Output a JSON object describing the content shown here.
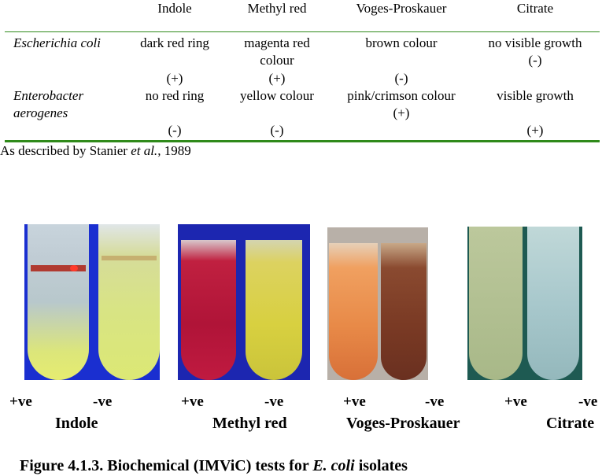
{
  "table": {
    "headers": [
      "Indole",
      "Methyl red",
      "Voges-Proskauer",
      "Citrate"
    ],
    "rows": [
      {
        "organism": "Escherichia coli",
        "indole": "dark red ring",
        "methyl_red": "magenta red colour",
        "voges": "brown colour",
        "citrate": "no visible growth",
        "citrate_result": "(-)",
        "results": [
          "(+)",
          "(+)",
          "(-)"
        ]
      },
      {
        "organism": "Enterobacter aerogenes",
        "indole": "no red ring",
        "methyl_red": "yellow colour",
        "voges": "pink/crimson colour",
        "voges_result": "(+)",
        "citrate": "visible growth",
        "results": [
          "(-)",
          "(-)",
          "(+)"
        ]
      }
    ],
    "source_prefix": "As described by Stanier ",
    "source_italic": "et al.",
    "source_suffix": ", 1989"
  },
  "figure": {
    "labels": [
      "+ve",
      "-ve"
    ],
    "tests": [
      "Indole",
      "Methyl red",
      "Voges-Proskauer",
      "Citrate"
    ],
    "caption_prefix": "Figure 4.1.3. Biochemical (IMViC) tests for ",
    "caption_italic": "E. coli",
    "caption_suffix": " isolates"
  },
  "colors": {
    "rule": "#2f8a1a",
    "indole_bg": "#1a2fd0",
    "methyl_bg": "#1c26b0",
    "voges_bg": "#b8b0a8",
    "citrate_bg": "#1e5a52"
  }
}
